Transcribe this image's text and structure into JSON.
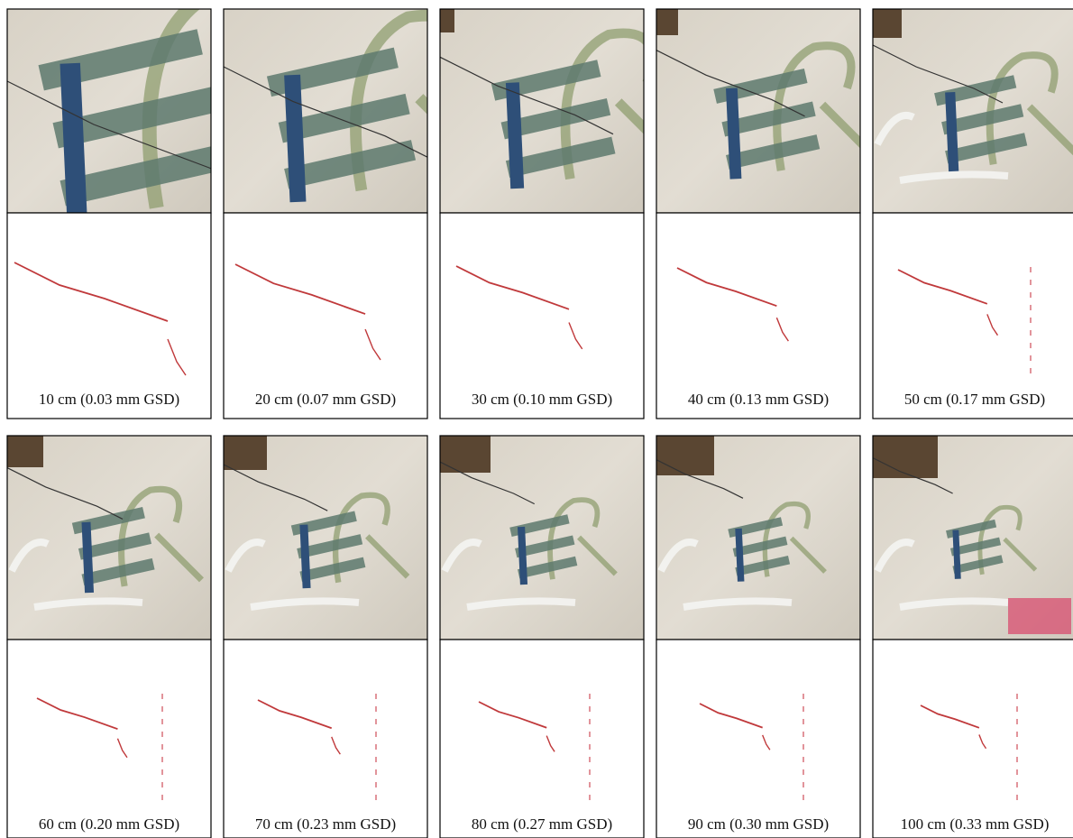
{
  "panels": [
    {
      "label": "10 cm (0.03 mm GSD)"
    },
    {
      "label": "20 cm (0.07 mm GSD)"
    },
    {
      "label": "30 cm (0.10 mm GSD)"
    },
    {
      "label": "40 cm (0.13 mm GSD)"
    },
    {
      "label": "50 cm (0.17 mm GSD)"
    },
    {
      "label": "60 cm (0.20 mm GSD)"
    },
    {
      "label": "70 cm (0.23 mm GSD)"
    },
    {
      "label": "80 cm (0.27 mm GSD)"
    },
    {
      "label": "90 cm (0.30 mm GSD)"
    },
    {
      "label": "100 cm (0.33 mm GSD)"
    }
  ]
}
